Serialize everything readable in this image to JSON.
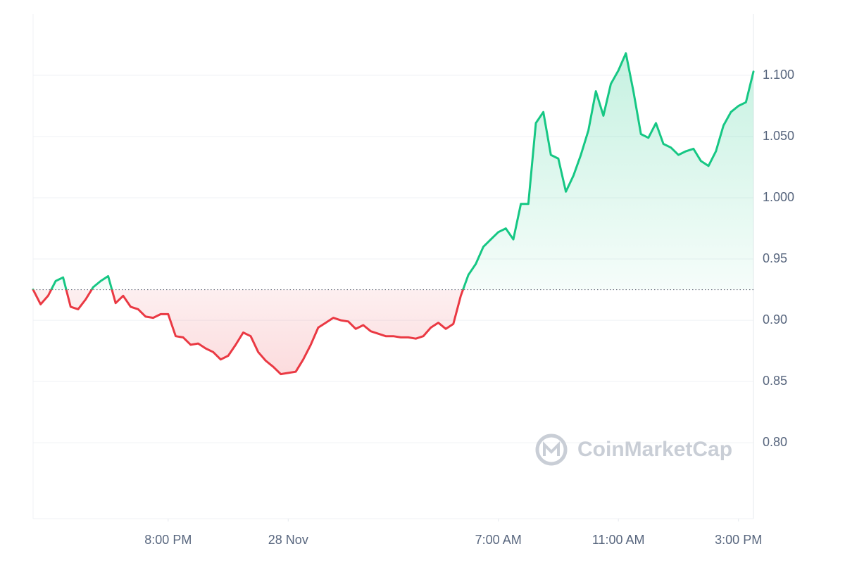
{
  "chart_data": {
    "type": "line",
    "watermark": "CoinMarketCap",
    "values": [
      0.925,
      0.913,
      0.92,
      0.932,
      0.935,
      0.911,
      0.909,
      0.917,
      0.927,
      0.932,
      0.936,
      0.914,
      0.92,
      0.911,
      0.909,
      0.903,
      0.902,
      0.905,
      0.905,
      0.887,
      0.886,
      0.88,
      0.881,
      0.877,
      0.874,
      0.868,
      0.871,
      0.88,
      0.89,
      0.887,
      0.874,
      0.867,
      0.862,
      0.856,
      0.857,
      0.858,
      0.868,
      0.88,
      0.894,
      0.898,
      0.902,
      0.9,
      0.899,
      0.893,
      0.896,
      0.891,
      0.889,
      0.887,
      0.887,
      0.886,
      0.886,
      0.885,
      0.887,
      0.894,
      0.898,
      0.893,
      0.897,
      0.92,
      0.937,
      0.946,
      0.96,
      0.966,
      0.972,
      0.975,
      0.966,
      0.995,
      0.995,
      1.061,
      1.07,
      1.035,
      1.032,
      1.005,
      1.018,
      1.035,
      1.055,
      1.087,
      1.067,
      1.093,
      1.104,
      1.118,
      1.087,
      1.052,
      1.049,
      1.061,
      1.044,
      1.041,
      1.035,
      1.038,
      1.04,
      1.03,
      1.026,
      1.038,
      1.059,
      1.07,
      1.075,
      1.078,
      1.103
    ],
    "baseline": 0.925,
    "up_color": "#16c784",
    "down_color": "#ea3943",
    "xlim": [
      0,
      96
    ],
    "xticks": [
      {
        "value": 18,
        "label": "8:00 PM"
      },
      {
        "value": 34,
        "label": "28 Nov"
      },
      {
        "value": 62,
        "label": "7:00 AM"
      },
      {
        "value": 78,
        "label": "11:00 AM"
      },
      {
        "value": 94,
        "label": "3:00 PM"
      }
    ],
    "ylim": [
      0.738,
      1.15
    ],
    "yticks": [
      {
        "value": 0.8,
        "label": "0.80"
      },
      {
        "value": 0.85,
        "label": "0.85"
      },
      {
        "value": 0.9,
        "label": "0.90"
      },
      {
        "value": 0.95,
        "label": "0.95"
      },
      {
        "value": 1.0,
        "label": "1.000"
      },
      {
        "value": 1.05,
        "label": "1.050"
      },
      {
        "value": 1.1,
        "label": "1.100"
      }
    ],
    "grid": true
  }
}
